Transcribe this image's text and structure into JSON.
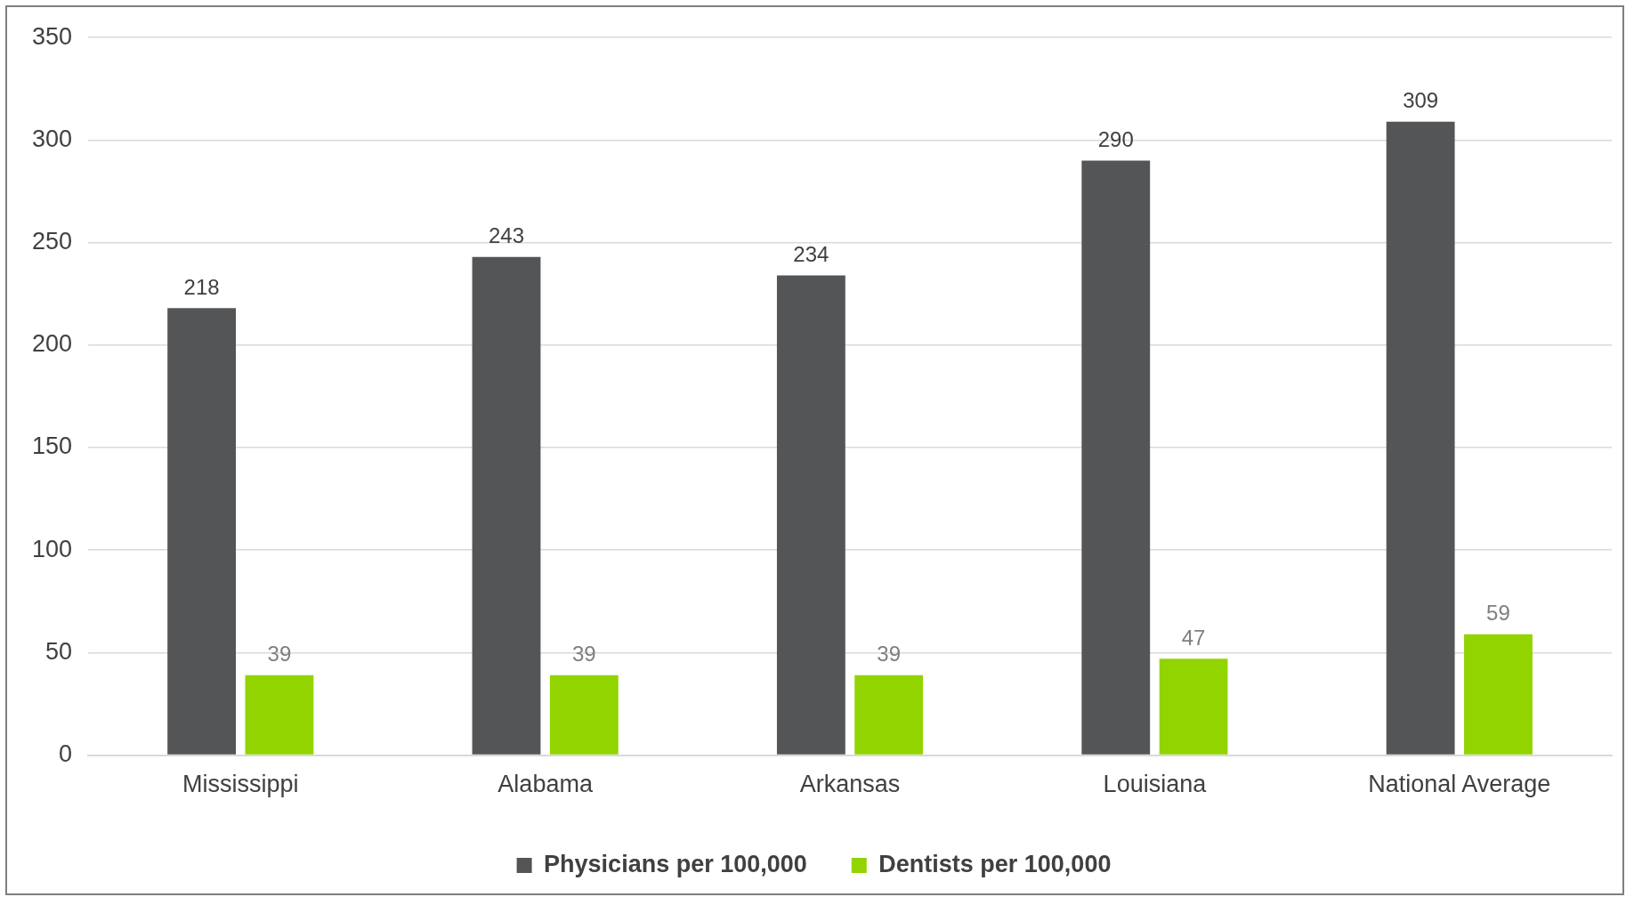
{
  "chart_data": {
    "type": "bar",
    "categories": [
      "Mississippi",
      "Alabama",
      "Arkansas",
      "Louisiana",
      "National Average"
    ],
    "series": [
      {
        "name": "Physicians per 100,000",
        "color": "#545557",
        "values": [
          218,
          243,
          234,
          290,
          309
        ]
      },
      {
        "name": "Dentists per 100,000",
        "color": "#92d400",
        "values": [
          39,
          39,
          39,
          47,
          59
        ]
      }
    ],
    "ylim": [
      0,
      350
    ],
    "yticks": [
      0,
      50,
      100,
      150,
      200,
      250,
      300,
      350
    ],
    "grid": "y",
    "legend": "bottom",
    "data_labels": true
  }
}
